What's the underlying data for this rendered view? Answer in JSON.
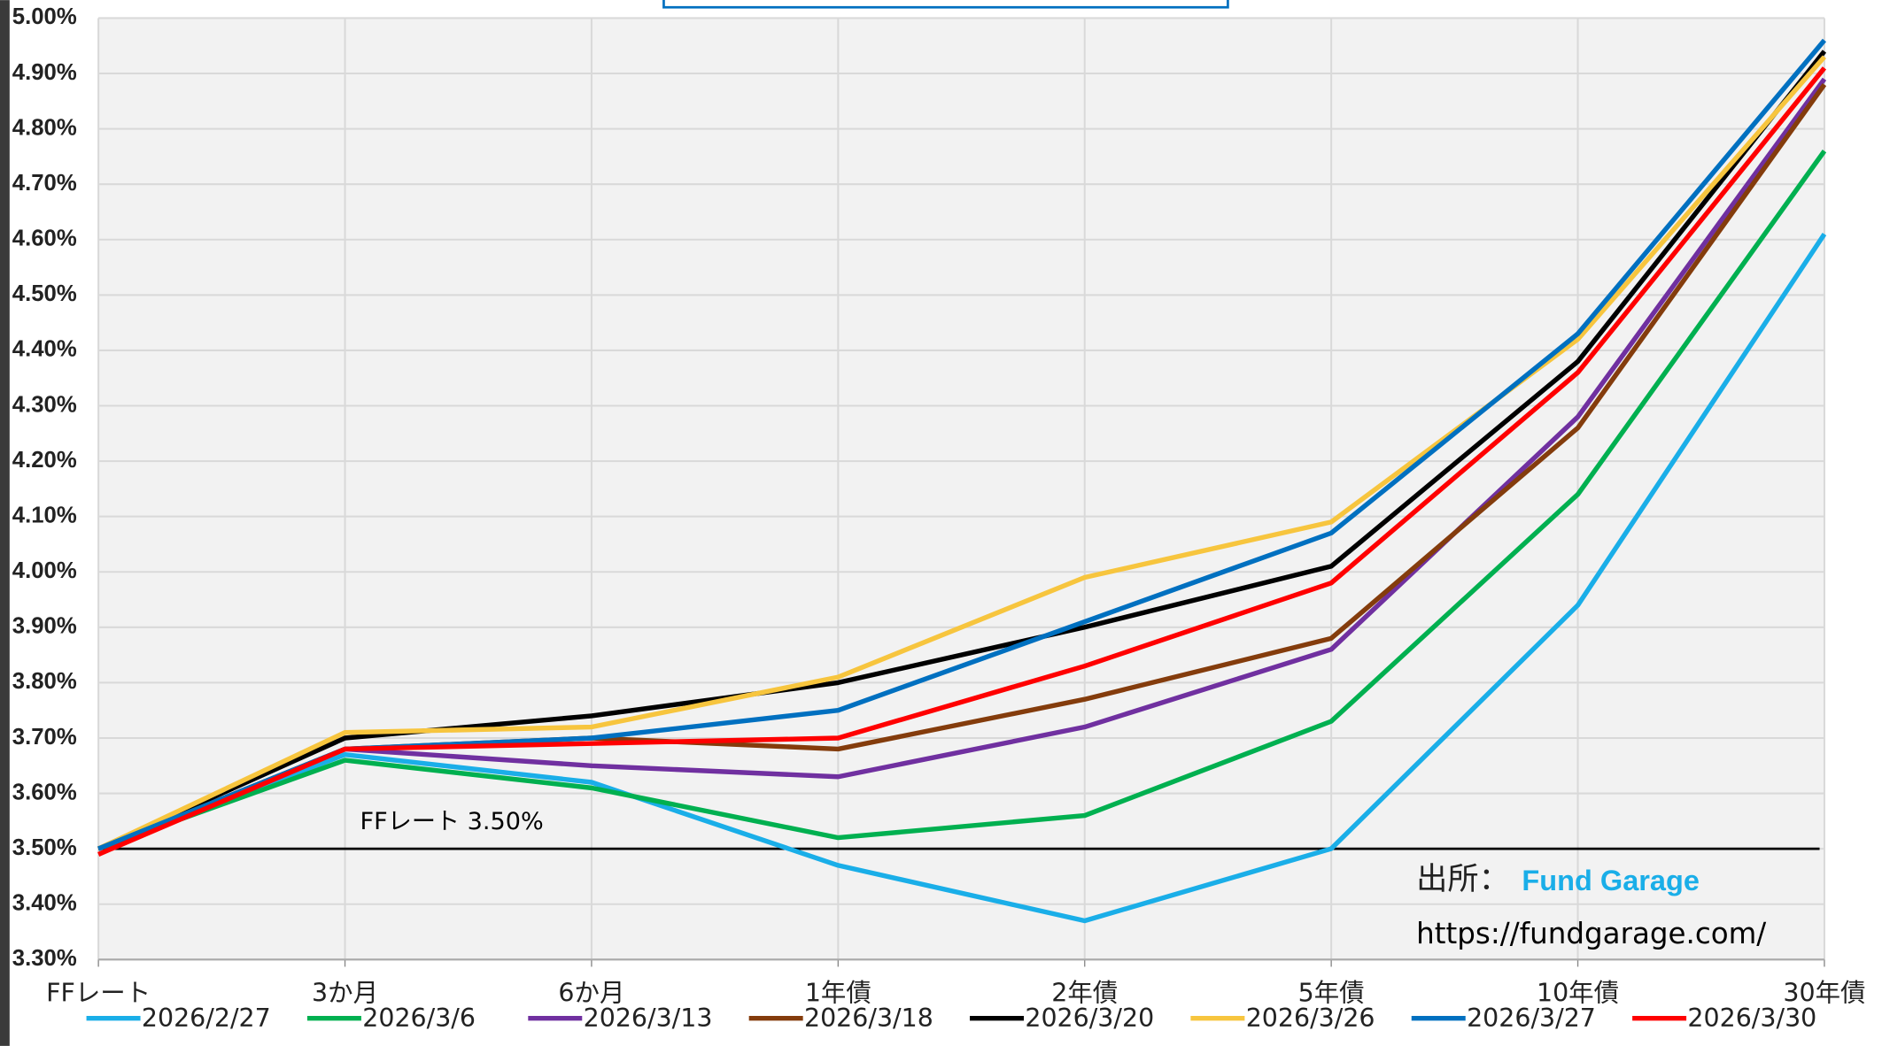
{
  "chart_data": {
    "type": "line",
    "categories": [
      "FFレート",
      "3か月",
      "6か月",
      "1年債",
      "2年債",
      "5年債",
      "10年債",
      "30年債"
    ],
    "series": [
      {
        "name": "2026/2/27",
        "color": "#1aaee8",
        "values": [
          3.5,
          3.67,
          3.62,
          3.47,
          3.37,
          3.5,
          3.94,
          4.61
        ]
      },
      {
        "name": "2026/3/6",
        "color": "#00b050",
        "values": [
          3.5,
          3.66,
          3.61,
          3.52,
          3.56,
          3.73,
          4.14,
          4.76
        ]
      },
      {
        "name": "2026/3/13",
        "color": "#7030a0",
        "values": [
          3.5,
          3.68,
          3.65,
          3.63,
          3.72,
          3.86,
          4.28,
          4.89
        ]
      },
      {
        "name": "2026/3/18",
        "color": "#843c0c",
        "values": [
          3.5,
          3.68,
          3.7,
          3.68,
          3.77,
          3.88,
          4.26,
          4.88
        ]
      },
      {
        "name": "2026/3/20",
        "color": "#000000",
        "values": [
          3.5,
          3.7,
          3.74,
          3.8,
          3.9,
          4.01,
          4.38,
          4.94
        ]
      },
      {
        "name": "2026/3/26",
        "color": "#f7c53e",
        "values": [
          3.5,
          3.71,
          3.72,
          3.81,
          3.99,
          4.09,
          4.42,
          4.93
        ]
      },
      {
        "name": "2026/3/27",
        "color": "#0070c0",
        "values": [
          3.5,
          3.68,
          3.7,
          3.75,
          3.91,
          4.07,
          4.43,
          4.96
        ]
      },
      {
        "name": "2026/3/30",
        "color": "#ff0000",
        "values": [
          3.49,
          3.68,
          3.69,
          3.7,
          3.83,
          3.98,
          4.36,
          4.91
        ]
      }
    ],
    "ylim": [
      3.3,
      5.0
    ],
    "yticks": [
      {
        "value": 3.3,
        "label": "3.30%"
      },
      {
        "value": 3.4,
        "label": "3.40%"
      },
      {
        "value": 3.5,
        "label": "3.50%"
      },
      {
        "value": 3.6,
        "label": "3.60%"
      },
      {
        "value": 3.7,
        "label": "3.70%"
      },
      {
        "value": 3.8,
        "label": "3.80%"
      },
      {
        "value": 3.9,
        "label": "3.90%"
      },
      {
        "value": 4.0,
        "label": "4.00%"
      },
      {
        "value": 4.1,
        "label": "4.10%"
      },
      {
        "value": 4.2,
        "label": "4.20%"
      },
      {
        "value": 4.3,
        "label": "4.30%"
      },
      {
        "value": 4.4,
        "label": "4.40%"
      },
      {
        "value": 4.5,
        "label": "4.50%"
      },
      {
        "value": 4.6,
        "label": "4.60%"
      },
      {
        "value": 4.7,
        "label": "4.70%"
      },
      {
        "value": 4.8,
        "label": "4.80%"
      },
      {
        "value": 4.9,
        "label": "4.90%"
      },
      {
        "value": 5.0,
        "label": "5.00%"
      }
    ],
    "grid": true,
    "reference_line": {
      "value": 3.5,
      "label": "FFレート 3.50%"
    },
    "source_label": "出所：",
    "source_name": "Fund Garage",
    "source_url": "https://fundgarage.com/"
  }
}
